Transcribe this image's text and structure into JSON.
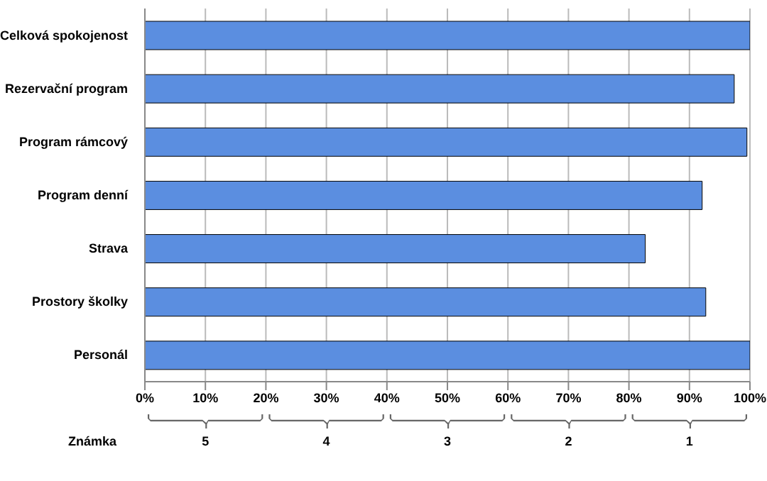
{
  "chart_data": {
    "type": "bar",
    "orientation": "horizontal",
    "categories": [
      "Celková spokojenost",
      "Rezervační program",
      "Program rámcový",
      "Program denní",
      "Strava",
      "Prostory školky",
      "Personál"
    ],
    "values": [
      100,
      97.4,
      99.5,
      92.1,
      82.7,
      92.7,
      100
    ],
    "color": "#5b8ee0",
    "xlim": [
      0,
      100
    ],
    "xticks": [
      {
        "value": 0,
        "label": "0%"
      },
      {
        "value": 10,
        "label": "10%"
      },
      {
        "value": 20,
        "label": "20%"
      },
      {
        "value": 30,
        "label": "30%"
      },
      {
        "value": 40,
        "label": "40%"
      },
      {
        "value": 50,
        "label": "50%"
      },
      {
        "value": 60,
        "label": "60%"
      },
      {
        "value": 70,
        "label": "70%"
      },
      {
        "value": 80,
        "label": "80%"
      },
      {
        "value": 90,
        "label": "90%"
      },
      {
        "value": 100,
        "label": "100%"
      }
    ],
    "grid": "x",
    "legend": false,
    "annotations": [
      "Známka",
      "5",
      "4",
      "3",
      "2",
      "1"
    ]
  }
}
